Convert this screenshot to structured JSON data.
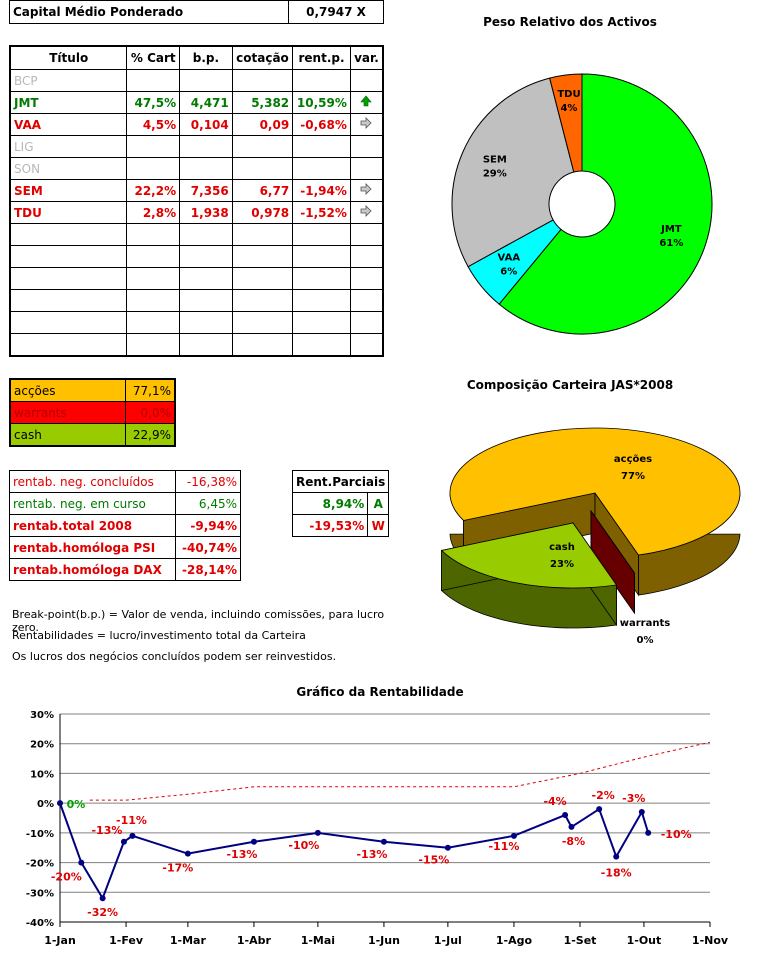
{
  "capital": {
    "label": "Capital Médio Ponderado",
    "value": "0,7947 X"
  },
  "main_table": {
    "headers": [
      "Título",
      "% Cart",
      "b.p.",
      "cotação",
      "rent.p.",
      "var."
    ],
    "rows": [
      {
        "titulo": "BCP",
        "cart": "",
        "bp": "",
        "cot": "",
        "rent": "",
        "var": "",
        "style": "gry"
      },
      {
        "titulo": "JMT",
        "cart": "47,5%",
        "bp": "4,471",
        "cot": "5,382",
        "rent": "10,59%",
        "var": "up",
        "style": "grn"
      },
      {
        "titulo": "VAA",
        "cart": "4,5%",
        "bp": "0,104",
        "cot": "0,09",
        "rent": "-0,68%",
        "var": "right",
        "style": "red"
      },
      {
        "titulo": "LIG",
        "cart": "",
        "bp": "",
        "cot": "",
        "rent": "",
        "var": "",
        "style": "gry"
      },
      {
        "titulo": "SON",
        "cart": "",
        "bp": "",
        "cot": "",
        "rent": "",
        "var": "",
        "style": "gry"
      },
      {
        "titulo": "SEM",
        "cart": "22,2%",
        "bp": "7,356",
        "cot": "6,77",
        "rent": "-1,94%",
        "var": "right",
        "style": "red"
      },
      {
        "titulo": "TDU",
        "cart": "2,8%",
        "bp": "1,938",
        "cot": "0,978",
        "rent": "-1,52%",
        "var": "right",
        "style": "red"
      },
      {
        "titulo": "",
        "cart": "",
        "bp": "",
        "cot": "",
        "rent": "",
        "var": "",
        "style": ""
      },
      {
        "titulo": "",
        "cart": "",
        "bp": "",
        "cot": "",
        "rent": "",
        "var": "",
        "style": ""
      },
      {
        "titulo": "",
        "cart": "",
        "bp": "",
        "cot": "",
        "rent": "",
        "var": "",
        "style": ""
      },
      {
        "titulo": "",
        "cart": "",
        "bp": "",
        "cot": "",
        "rent": "",
        "var": "",
        "style": ""
      },
      {
        "titulo": "",
        "cart": "",
        "bp": "",
        "cot": "",
        "rent": "",
        "var": "",
        "style": ""
      },
      {
        "titulo": "",
        "cart": "",
        "bp": "",
        "cot": "",
        "rent": "",
        "var": "",
        "style": ""
      }
    ]
  },
  "composition": [
    {
      "label": "acções",
      "value": "77,1%",
      "bg": "#ffc000",
      "color": "#000000"
    },
    {
      "label": "warrants",
      "value": "0,0%",
      "bg": "#ff0000",
      "color": "#b00000"
    },
    {
      "label": "cash",
      "value": "22,9%",
      "bg": "#99cc00",
      "color": "#000000"
    }
  ],
  "rentab": [
    {
      "label": "rentab. neg. concluídos",
      "value": "-16,38%",
      "style": "redn"
    },
    {
      "label": "rentab. neg. em curso",
      "value": "6,45%",
      "style": "grnn"
    },
    {
      "label": "rentab.total 2008",
      "value": "-9,94%",
      "style": "red"
    },
    {
      "label": "rentab.homóloga PSI",
      "value": "-40,74%",
      "style": "red"
    },
    {
      "label": "rentab.homóloga DAX",
      "value": "-28,14%",
      "style": "red"
    }
  ],
  "parciais": {
    "title": "Rent.Parciais",
    "rows": [
      {
        "value": "8,94%",
        "flag": "A",
        "style": "grn"
      },
      {
        "value": "-19,53%",
        "flag": "W",
        "style": "red"
      }
    ]
  },
  "notes": [
    "Break-point(b.p.) = Valor de venda, incluindo comissões, para lucro zero.",
    "Rentabilidades = lucro/investimento total da Carteira",
    "Os lucros dos negócios concluídos podem ser reinvestidos."
  ],
  "chart_data": [
    {
      "type": "pie",
      "title": "Peso Relativo dos Activos",
      "donut": true,
      "labels": [
        "JMT",
        "VAA",
        "SEM",
        "TDU"
      ],
      "label_texts": [
        "61%",
        "6%",
        "29%",
        "4%"
      ],
      "values": [
        61,
        6,
        29,
        4
      ],
      "colors": [
        "#00ff00",
        "#00ffff",
        "#c0c0c0",
        "#ff6600"
      ]
    },
    {
      "type": "pie",
      "title": "Composição Carteira JAS*2008",
      "three_d": true,
      "labels": [
        "acções",
        "warrants",
        "cash"
      ],
      "label_texts": [
        "77%",
        "0%",
        "23%"
      ],
      "values": [
        77.1,
        0.0,
        22.9
      ],
      "colors": [
        "#ffc000",
        "#cc0000",
        "#99cc00"
      ]
    },
    {
      "type": "line",
      "title": "Gráfico da Rentabilidade",
      "x_ticks": [
        "1-Jan",
        "1-Fev",
        "1-Mar",
        "1-Abr",
        "1-Mai",
        "1-Jun",
        "1-Jul",
        "1-Ago",
        "1-Set",
        "1-Out",
        "1-Nov"
      ],
      "ylim": [
        -40,
        30
      ],
      "y_ticks": [
        "-40%",
        "-30%",
        "-20%",
        "-10%",
        "0%",
        "10%",
        "20%",
        "30%"
      ],
      "grid": true,
      "series": [
        {
          "line": "solid",
          "color": "#000080",
          "points": [
            {
              "x": "2008-01-01",
              "y": 0,
              "label": "0%",
              "lc": "#00a000"
            },
            {
              "x": "2008-01-11",
              "y": -20,
              "label": "-20%",
              "lc": "#e00000"
            },
            {
              "x": "2008-01-21",
              "y": -32,
              "label": "-32%",
              "lc": "#e00000"
            },
            {
              "x": "2008-01-31",
              "y": -13,
              "label": "-13%",
              "lc": "#e00000"
            },
            {
              "x": "2008-02-04",
              "y": -11,
              "label": "-11%",
              "lc": "#e00000"
            },
            {
              "x": "2008-03-01",
              "y": -17,
              "label": "-17%",
              "lc": "#e00000"
            },
            {
              "x": "2008-04-01",
              "y": -13,
              "label": "-13%",
              "lc": "#e00000"
            },
            {
              "x": "2008-05-01",
              "y": -10,
              "label": "-10%",
              "lc": "#e00000"
            },
            {
              "x": "2008-06-01",
              "y": -13,
              "label": "-13%",
              "lc": "#e00000"
            },
            {
              "x": "2008-07-01",
              "y": -15,
              "label": "-15%",
              "lc": "#e00000"
            },
            {
              "x": "2008-08-01",
              "y": -11,
              "label": "-11%",
              "lc": "#e00000"
            },
            {
              "x": "2008-08-25",
              "y": -4,
              "label": "-4%",
              "lc": "#e00000"
            },
            {
              "x": "2008-08-28",
              "y": -8,
              "label": "-8%",
              "lc": "#e00000"
            },
            {
              "x": "2008-09-10",
              "y": -2,
              "label": "-2%",
              "lc": "#e00000"
            },
            {
              "x": "2008-09-18",
              "y": -18,
              "label": "-18%",
              "lc": "#e00000"
            },
            {
              "x": "2008-09-30",
              "y": -3,
              "label": "-3%",
              "lc": "#e00000"
            },
            {
              "x": "2008-10-03",
              "y": -10,
              "label": "-10%",
              "lc": "#e00000"
            }
          ]
        },
        {
          "line": "dashed",
          "color": "#e00000",
          "points": [
            {
              "x": "2008-01-15",
              "y": 1
            },
            {
              "x": "2008-02-01",
              "y": 1
            },
            {
              "x": "2008-03-01",
              "y": 3
            },
            {
              "x": "2008-04-01",
              "y": 5.5
            },
            {
              "x": "2008-05-01",
              "y": 5.5
            },
            {
              "x": "2008-06-01",
              "y": 5.5
            },
            {
              "x": "2008-07-01",
              "y": 5.5
            },
            {
              "x": "2008-08-01",
              "y": 5.5
            },
            {
              "x": "2008-09-01",
              "y": 10
            },
            {
              "x": "2008-10-01",
              "y": 15.5
            },
            {
              "x": "2008-11-01",
              "y": 20.5
            }
          ]
        }
      ]
    }
  ]
}
